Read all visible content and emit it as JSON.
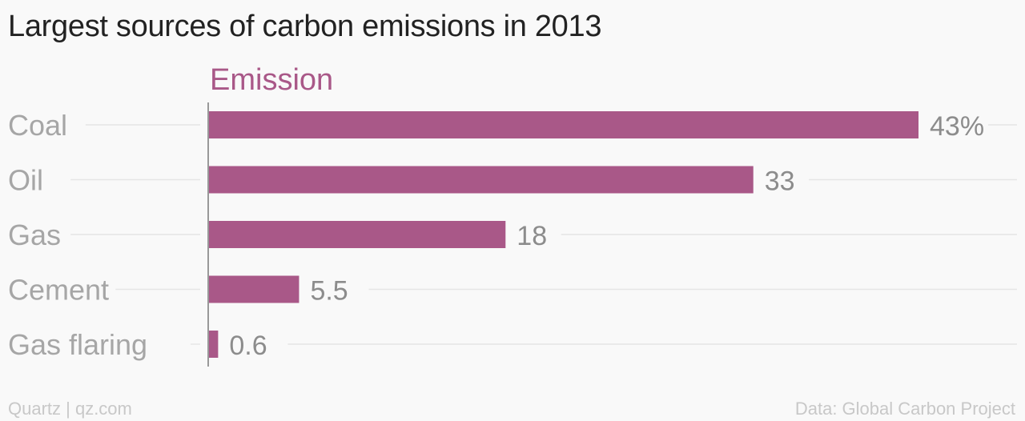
{
  "title": "Largest sources of carbon emissions in 2013",
  "footer": {
    "source_left": "Quartz | qz.com",
    "source_right": "Data: Global Carbon Project"
  },
  "colors": {
    "bar": "#a95888",
    "series_label": "#a95888",
    "category_text": "#a6a6a6",
    "value_text": "#8c8c8c",
    "grid": "#e6e6e6",
    "axis": "#999999"
  },
  "chart_data": {
    "type": "bar",
    "orientation": "horizontal",
    "title": "Largest sources of carbon emissions in 2013",
    "categories": [
      "Coal",
      "Oil",
      "Gas",
      "Cement",
      "Gas flaring"
    ],
    "series": [
      {
        "name": "Emission",
        "values": [
          43,
          33,
          18,
          5.5,
          0.6
        ],
        "value_labels": [
          "43%",
          "33",
          "18",
          "5.5",
          "0.6"
        ]
      }
    ],
    "xlim": [
      0,
      43
    ],
    "grid": true,
    "legend": "top-left"
  }
}
